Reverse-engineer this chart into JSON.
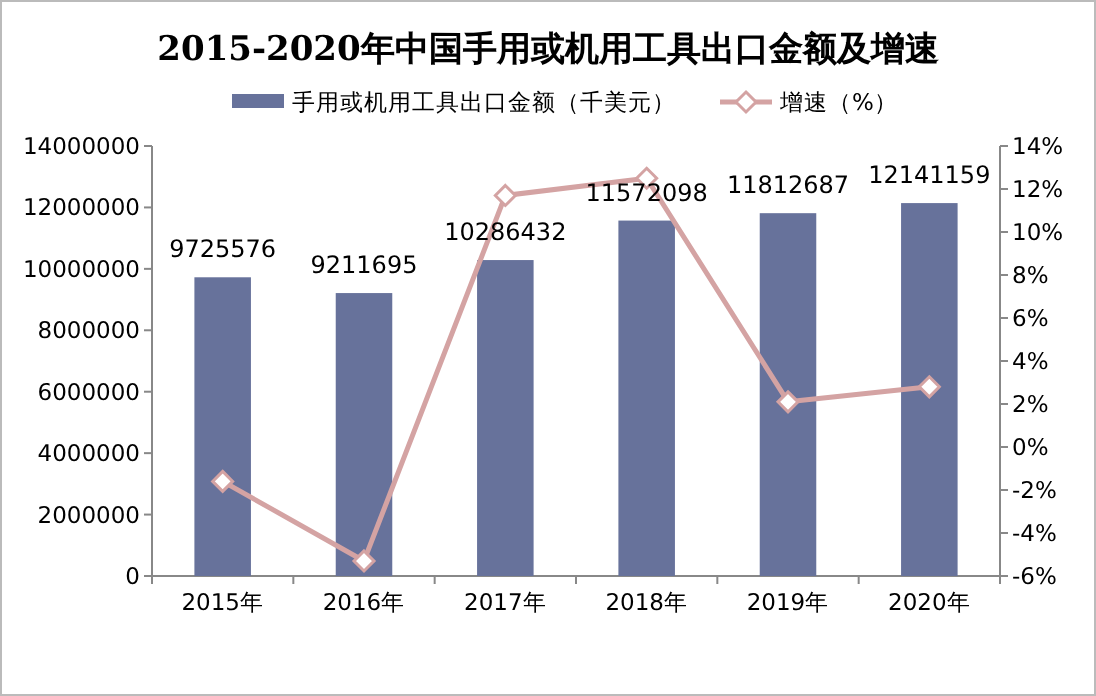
{
  "chart_data": {
    "type": "bar",
    "title": "2015-2020年中国手用或机用工具出口金额及增速",
    "categories": [
      "2015年",
      "2016年",
      "2017年",
      "2018年",
      "2019年",
      "2020年"
    ],
    "series": [
      {
        "name": "手用或机用工具出口金额（千美元）",
        "color": "#67729b",
        "values": [
          9725576,
          9211695,
          10286432,
          11572098,
          11812687,
          12141159
        ],
        "value_labels": [
          "9725576",
          "9211695",
          "10286432",
          "11572098",
          "11812687",
          "12141159"
        ]
      },
      {
        "name": "增速（%）",
        "type": "line",
        "axis": "y2",
        "color": "#d4a3a3",
        "marker": "diamond",
        "values": [
          -1.6,
          -5.3,
          11.7,
          12.5,
          2.1,
          2.8
        ]
      }
    ],
    "ylim": [
      0,
      14000000
    ],
    "yticks": [
      0,
      2000000,
      4000000,
      6000000,
      8000000,
      10000000,
      12000000,
      14000000
    ],
    "y2lim": [
      -6,
      14
    ],
    "y2ticks": [
      {
        "value": -6,
        "label": "-6%"
      },
      {
        "value": -4,
        "label": "-4%"
      },
      {
        "value": -2,
        "label": "-2%"
      },
      {
        "value": 0,
        "label": "0%"
      },
      {
        "value": 2,
        "label": "2%"
      },
      {
        "value": 4,
        "label": "4%"
      },
      {
        "value": 6,
        "label": "6%"
      },
      {
        "value": 8,
        "label": "8%"
      },
      {
        "value": 10,
        "label": "10%"
      },
      {
        "value": 12,
        "label": "12%"
      },
      {
        "value": 14,
        "label": "14%"
      }
    ],
    "grid": false,
    "legend": "top"
  }
}
